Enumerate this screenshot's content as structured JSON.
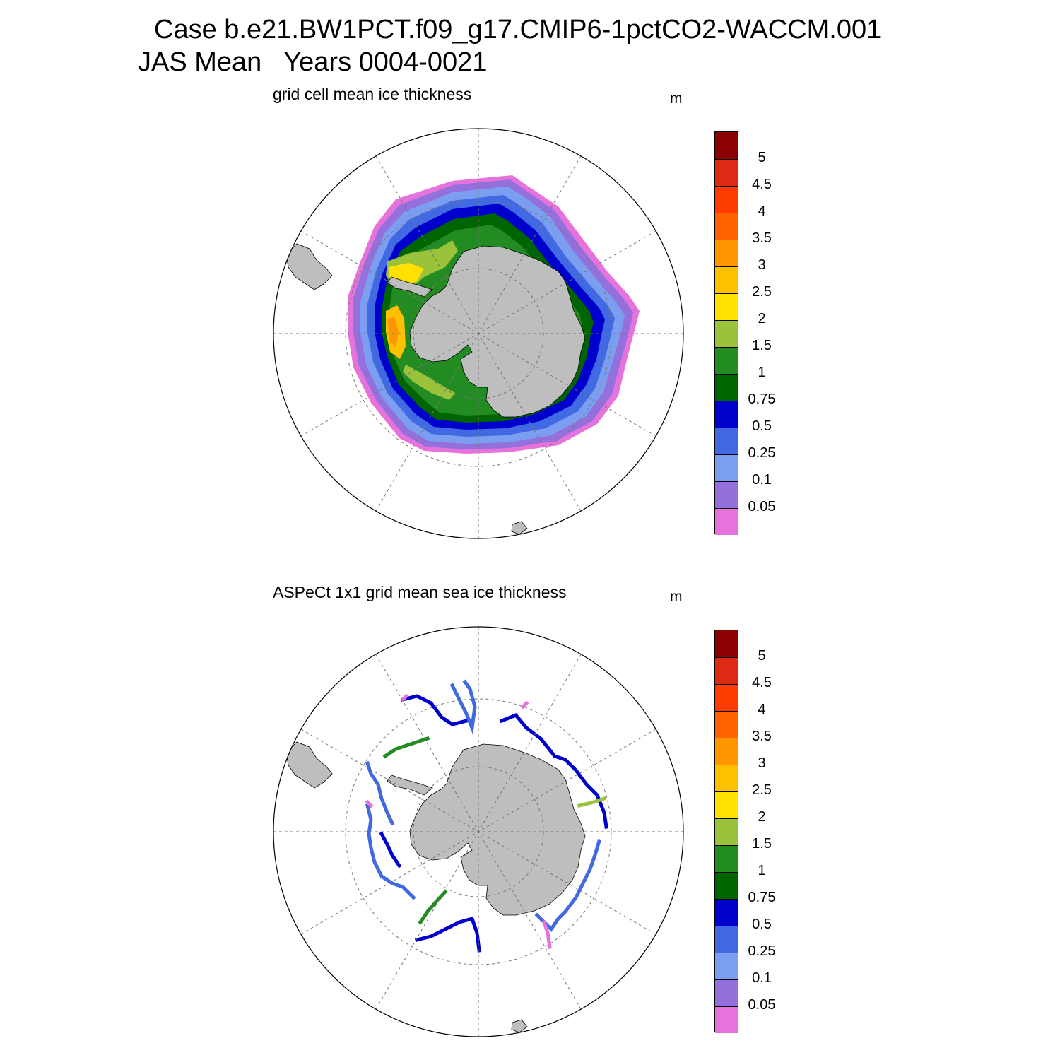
{
  "title": {
    "line1": "Case b.e21.BW1PCT.f09_g17.CMIP6-1pctCO2-WACCM.001",
    "line2": "JAS Mean   Years 0004-0021"
  },
  "panels": [
    {
      "title": "grid cell mean ice thickness",
      "unit": "m"
    },
    {
      "title": "ASPeCt 1x1 grid mean sea ice thickness",
      "unit": "m"
    }
  ],
  "colorbar": {
    "labels": [
      "5",
      "4.5",
      "4",
      "3.5",
      "3",
      "2.5",
      "2",
      "1.5",
      "1",
      "0.75",
      "0.5",
      "0.25",
      "0.1",
      "0.05"
    ],
    "colors": [
      "#8b0000",
      "#dc2a14",
      "#ff3c00",
      "#ff6400",
      "#ff9600",
      "#ffc000",
      "#ffe000",
      "#9bc23b",
      "#228b22",
      "#006400",
      "#0000cd",
      "#4169e1",
      "#7b9ef0",
      "#9370db",
      "#e673dc"
    ]
  },
  "map_colors": {
    "land": "#bebebe",
    "ocean": "#ffffff",
    "grid": "#777777"
  }
}
